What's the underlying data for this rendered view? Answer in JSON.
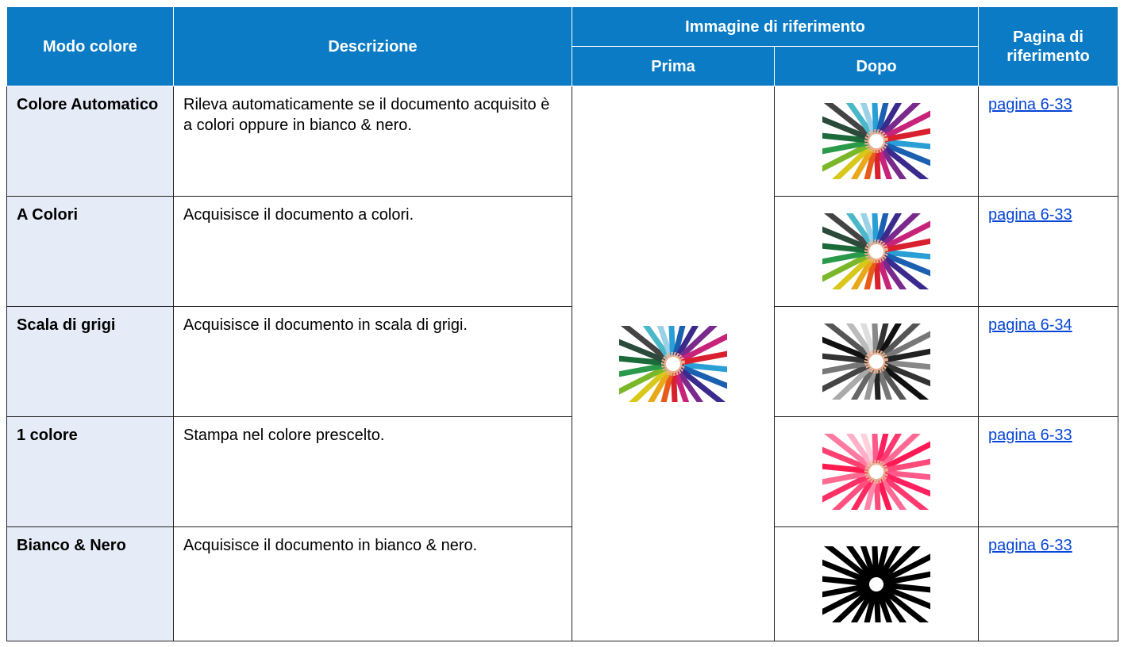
{
  "header": {
    "mode": "Modo colore",
    "description": "Descrizione",
    "reference_image": "Immagine di riferimento",
    "before": "Prima",
    "after": "Dopo",
    "reference_page": "Pagina di riferimento"
  },
  "rows": [
    {
      "mode": "Colore Automatico",
      "description": "Rileva automaticamente se il documento acquisito è a colori oppure in bianco & nero.",
      "page": "pagina 6-33"
    },
    {
      "mode": "A Colori",
      "description": "Acquisisce il documento a colori.",
      "page": "pagina 6-33"
    },
    {
      "mode": "Scala di grigi",
      "description": "Acquisisce il documento in scala di grigi.",
      "page": "pagina 6-34"
    },
    {
      "mode": "1 colore",
      "description": "Stampa nel colore prescelto.",
      "page": "pagina 6-33"
    },
    {
      "mode": "Bianco & Nero",
      "description": "Acquisisce il documento in bianco & nero.",
      "page": "pagina 6-33"
    }
  ]
}
